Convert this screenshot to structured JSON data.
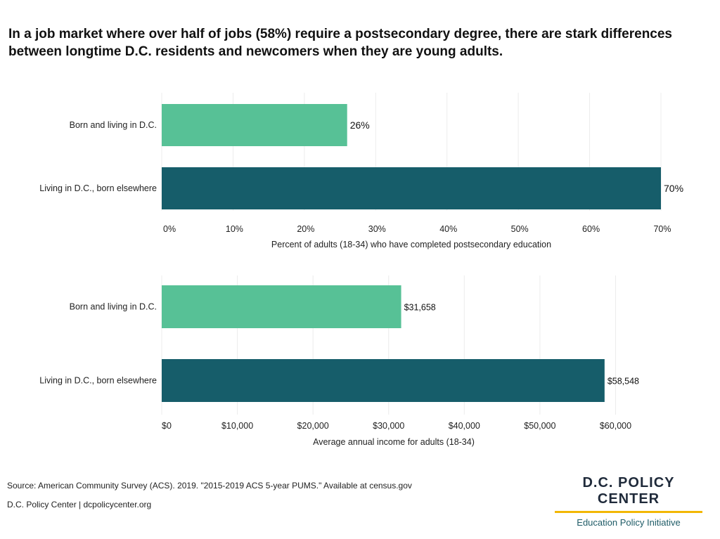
{
  "title": "In a job market where over half of jobs (58%) require a postsecondary degree, there are stark differences between longtime D.C. residents and newcomers when they are young adults.",
  "colors": {
    "born_dc": "#57c196",
    "born_elsewhere": "#165d6a"
  },
  "chart_data": [
    {
      "type": "bar",
      "orientation": "horizontal",
      "categories": [
        "Born and living in D.C.",
        "Living in D.C., born elsewhere"
      ],
      "values": [
        26,
        70
      ],
      "value_labels": [
        "26%",
        "70%"
      ],
      "xlabel": "Percent of adults (18-34) who have completed postsecondary education",
      "xlim": [
        0,
        70
      ],
      "ticks": [
        0,
        10,
        20,
        30,
        40,
        50,
        60,
        70
      ],
      "tick_labels": [
        "0%",
        "10%",
        "20%",
        "30%",
        "40%",
        "50%",
        "60%",
        "70%"
      ],
      "grid": true
    },
    {
      "type": "bar",
      "orientation": "horizontal",
      "categories": [
        "Born and living in D.C.",
        "Living in D.C., born elsewhere"
      ],
      "values": [
        31658,
        58548
      ],
      "value_labels": [
        "$31,658",
        "$58,548"
      ],
      "xlabel": "Average annual income for adults (18-34)",
      "xlim": [
        0,
        66000
      ],
      "ticks": [
        0,
        10000,
        20000,
        30000,
        40000,
        50000,
        60000
      ],
      "tick_labels": [
        "$0",
        "$10,000",
        "$20,000",
        "$30,000",
        "$40,000",
        "$50,000",
        "$60,000"
      ],
      "grid": true
    }
  ],
  "footer": {
    "source": "Source: American Community Survey (ACS). 2019. \"2015-2019 ACS 5-year PUMS.\" Available at census.gov",
    "credit": "D.C. Policy Center | dcpolicycenter.org"
  },
  "brand": {
    "name": "D.C. POLICY CENTER",
    "subtitle": "Education Policy Initiative"
  }
}
